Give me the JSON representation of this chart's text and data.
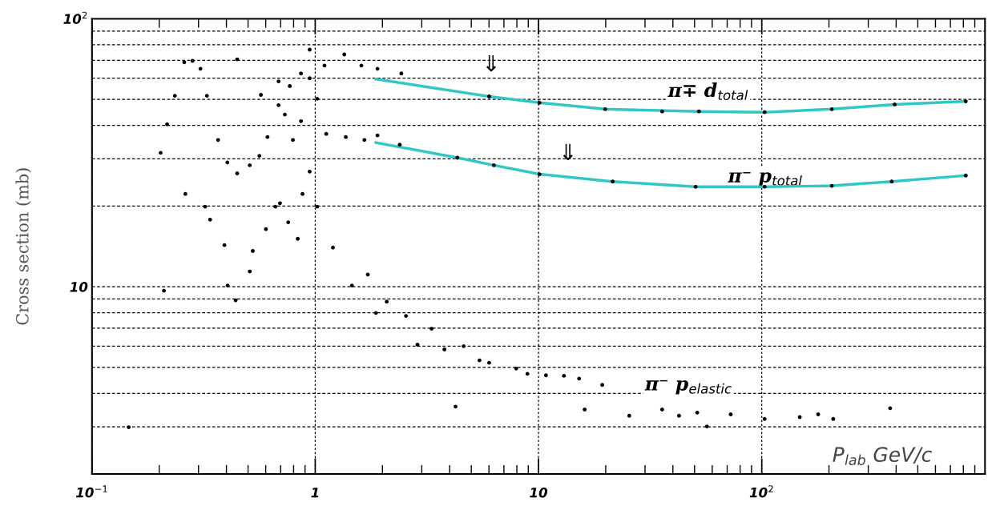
{
  "chart_data": {
    "type": "scatter",
    "ylabel": "Cross section (mb)",
    "xlabel": "P$_{lab}$ GeV/c",
    "log": "xy",
    "xlim": [
      0.1,
      1000
    ],
    "ylim": [
      2,
      100
    ],
    "xticks": [
      {
        "value": 0.1,
        "label": "10$^{−1}$"
      },
      1,
      10,
      {
        "value": 100,
        "label": "10$^{2}$"
      }
    ],
    "yticks": [
      10,
      {
        "value": 100,
        "label": "10$^{2}$"
      }
    ],
    "grid": true,
    "legend": false,
    "series": [
      {
        "color": "#33c6c6",
        "type": "line",
        "x": [
          1.87,
          6.01,
          10.1,
          19.9,
          52.3,
          103,
          206,
          394,
          820
        ],
        "values": [
          59.6,
          51.3,
          48.6,
          46,
          45.1,
          44.8,
          46,
          47.9,
          49.2
        ]
      },
      {
        "color": "#33c6c6",
        "type": "line",
        "x": [
          1.87,
          4.33,
          6.31,
          10.1,
          21.5,
          50.6,
          103,
          206,
          382,
          820
        ],
        "values": [
          34.5,
          30.3,
          28.4,
          26.3,
          24.7,
          23.6,
          23.6,
          23.8,
          24.7,
          26
        ]
      },
      {
        "name": "π∓ d$_{total}$",
        "marker": "circle",
        "color": "#000000",
        "x": [
          0.447,
          0.571,
          0.685,
          0.769,
          0.863,
          0.944,
          1.1,
          1.35,
          1.61,
          1.9,
          2.43,
          6.01,
          10.1,
          19.9,
          35.8,
          52.3,
          103,
          206,
          394,
          820
        ],
        "values": [
          70.6,
          52,
          58.4,
          56.1,
          62.5,
          76.7,
          66.9,
          73.6,
          66.9,
          65.1,
          62.5,
          51.3,
          48.6,
          46,
          45.1,
          45.1,
          44.8,
          46,
          47.9,
          49.2
        ]
      },
      {
        "name": "π⁻ p$_{total}$",
        "marker": "circle",
        "color": "#000000",
        "x": [
          0.203,
          0.217,
          0.235,
          0.259,
          0.282,
          0.306,
          0.327,
          0.367,
          0.404,
          0.447,
          0.509,
          0.562,
          0.611,
          0.685,
          0.731,
          0.794,
          0.863,
          0.944,
          1.02,
          1.12,
          1.37,
          1.66,
          1.9,
          2.39,
          4.33,
          6.31,
          10.1,
          21.5,
          50.6,
          103,
          206,
          382,
          820
        ],
        "values": [
          31.6,
          40.4,
          51.6,
          68.8,
          69.7,
          65.1,
          51.6,
          35.3,
          29.1,
          26.5,
          28.4,
          30.8,
          36.2,
          47.6,
          43.9,
          35.3,
          41.5,
          60,
          50.3,
          37.2,
          36.2,
          35.3,
          36.7,
          33.9,
          30.3,
          28.4,
          26.3,
          24.7,
          23.6,
          23.6,
          23.8,
          24.7,
          26
        ]
      },
      {
        "name": "π⁻ p$_{elastic}$",
        "marker": "circle",
        "color": "#000000",
        "x": [
          0.146,
          0.21,
          0.262,
          0.321,
          0.338,
          0.392,
          0.405,
          0.44,
          0.509,
          0.525,
          0.601,
          0.663,
          0.695,
          0.757,
          0.835,
          0.877,
          0.944,
          1.02,
          1.2,
          1.46,
          1.72,
          1.87,
          2.09,
          2.55,
          2.87,
          3.32,
          3.79,
          4.25,
          4.62,
          5.44,
          6.01,
          7.95,
          8.92,
          10.8,
          13,
          15.2,
          16.1,
          19.3,
          25.5,
          35.8,
          42.6,
          51.4,
          56.8,
          72.6,
          103,
          148,
          179,
          209,
          376
        ],
        "values": [
          2.99,
          9.66,
          22.2,
          19.9,
          17.8,
          14.3,
          10.1,
          8.9,
          11.4,
          13.6,
          16.4,
          19.9,
          20.5,
          17.4,
          15.1,
          22.2,
          26.9,
          19.9,
          14,
          10.1,
          11.1,
          7.98,
          8.8,
          7.78,
          6.08,
          6.97,
          5.83,
          3.57,
          6.0,
          5.31,
          5.2,
          4.95,
          4.73,
          4.67,
          4.65,
          4.54,
          3.48,
          4.3,
          3.3,
          3.48,
          3.3,
          3.39,
          3.01,
          3.34,
          3.21,
          3.26,
          3.34,
          3.21,
          3.52
        ]
      }
    ],
    "annotations": [
      "⇓",
      "⇓"
    ]
  }
}
